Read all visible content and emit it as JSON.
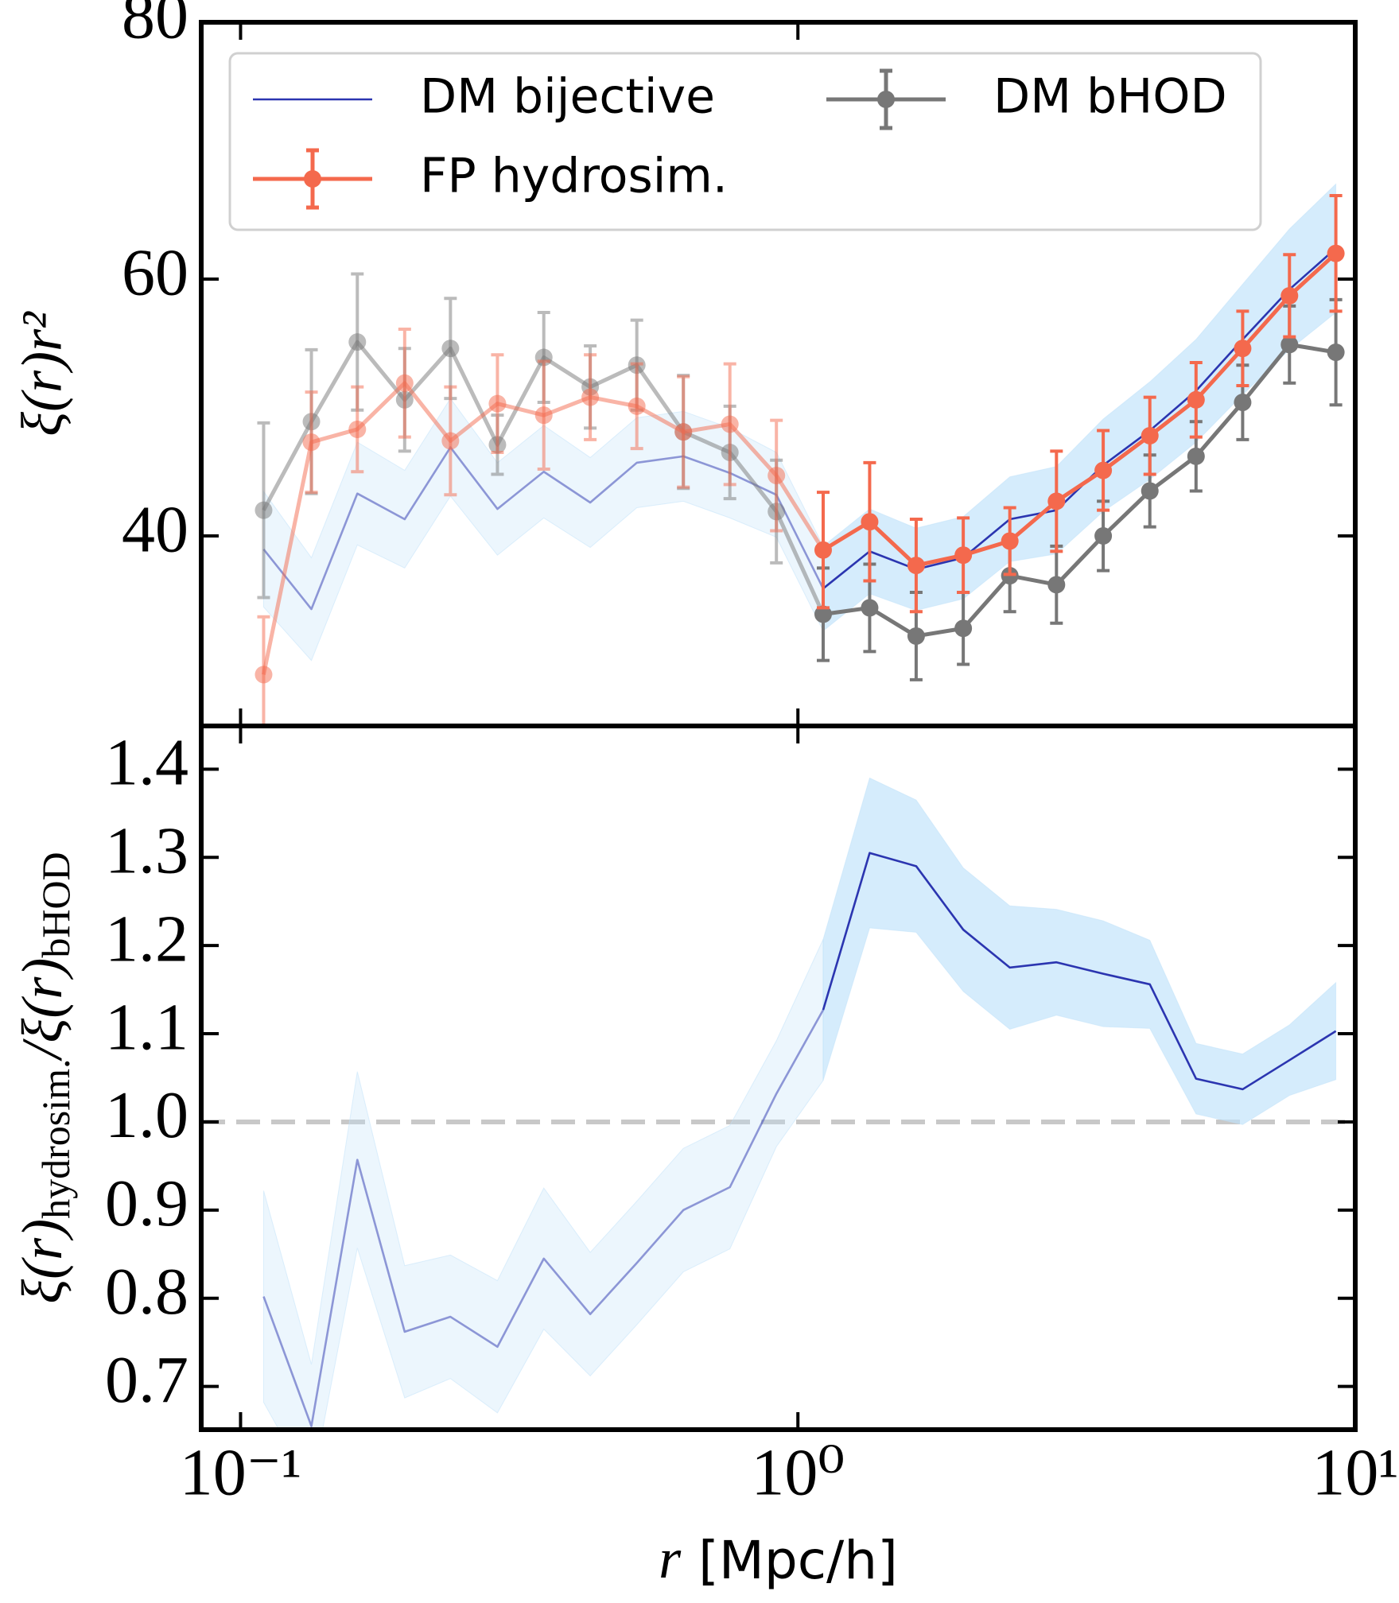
{
  "chart_data": [
    {
      "type": "line",
      "ylabel": "ξ(r)r²",
      "x": [
        0.11,
        0.134,
        0.162,
        0.197,
        0.238,
        0.289,
        0.35,
        0.424,
        0.514,
        0.623,
        0.755,
        0.915,
        1.11,
        1.345,
        1.63,
        1.98,
        2.4,
        2.91,
        3.53,
        4.28,
        5.18,
        6.28,
        7.62,
        9.23
      ],
      "xscale": "log",
      "xlim": [
        0.085,
        10
      ],
      "xticks": [
        {
          "value": 0.1,
          "label": "10⁻¹"
        },
        {
          "value": 1,
          "label": "10⁰"
        },
        {
          "value": 10,
          "label": "10¹"
        }
      ],
      "ylim": [
        25.2,
        80
      ],
      "yticks": [
        40,
        60,
        80
      ],
      "fade_below_x": 1,
      "legend": "upper left",
      "series": [
        {
          "name": "DM bijective",
          "color": "#2b35b0",
          "band_color": "#bfe2fa",
          "values": [
            38.96,
            34.3,
            43.3,
            41.3,
            46.9,
            42.1,
            45.0,
            42.6,
            45.7,
            46.2,
            44.9,
            43.2,
            35.9,
            38.8,
            37.4,
            38.3,
            41.3,
            42.0,
            45.5,
            48.2,
            51.3,
            55.3,
            59.2,
            62.4
          ],
          "band": [
            4.5,
            4.0,
            4.0,
            3.8,
            3.8,
            3.6,
            3.6,
            3.5,
            3.5,
            3.5,
            3.5,
            3.3,
            3.3,
            3.3,
            3.2,
            3.2,
            3.3,
            3.4,
            3.6,
            3.8,
            4.0,
            4.3,
            4.7,
            5.0
          ]
        },
        {
          "name": "FP hydrosim.",
          "color": "#f4694d",
          "values": [
            29.2,
            47.3,
            48.3,
            51.9,
            47.4,
            50.3,
            49.4,
            50.8,
            50.1,
            48.1,
            48.7,
            44.7,
            38.9,
            41.1,
            37.7,
            38.5,
            39.6,
            42.7,
            45.1,
            47.8,
            50.6,
            54.6,
            58.7,
            62.0
          ],
          "errors": [
            4.5,
            3.9,
            3.3,
            4.2,
            4.2,
            3.8,
            4.2,
            3.3,
            3.3,
            4.3,
            4.7,
            4.3,
            4.5,
            4.6,
            3.6,
            2.9,
            2.6,
            3.9,
            3.1,
            3.0,
            2.9,
            2.9,
            3.2,
            4.5
          ]
        },
        {
          "name": "DM bHOD",
          "color": "#777777",
          "values": [
            42.0,
            48.9,
            55.1,
            50.6,
            54.6,
            47.1,
            53.9,
            51.6,
            53.3,
            48.1,
            46.5,
            41.9,
            33.9,
            34.4,
            32.2,
            32.8,
            36.9,
            36.2,
            40.0,
            43.5,
            46.2,
            50.4,
            54.9,
            54.3
          ],
          "errors": [
            6.8,
            5.6,
            5.3,
            4.0,
            3.9,
            2.3,
            3.5,
            3.2,
            3.5,
            4.4,
            3.6,
            4.0,
            3.6,
            3.4,
            3.4,
            2.8,
            2.8,
            3.0,
            2.7,
            2.8,
            2.7,
            2.9,
            3.0,
            4.1
          ]
        }
      ]
    },
    {
      "type": "line",
      "ylabel": [
        "ξ(r)",
        "hydrosim.",
        "/ξ(r)",
        "bHOD"
      ],
      "xlabel": [
        "r",
        "[Mpc/h]"
      ],
      "x": [
        0.11,
        0.134,
        0.162,
        0.197,
        0.238,
        0.289,
        0.35,
        0.424,
        0.514,
        0.623,
        0.755,
        0.915,
        1.11,
        1.345,
        1.63,
        1.98,
        2.4,
        2.91,
        3.53,
        4.28,
        5.18,
        6.28,
        7.62,
        9.23
      ],
      "xscale": "log",
      "xlim": [
        0.085,
        10
      ],
      "xticks": [
        {
          "value": 0.1,
          "label": "10⁻¹"
        },
        {
          "value": 1,
          "label": "10⁰"
        },
        {
          "value": 10,
          "label": "10¹"
        }
      ],
      "ylim": [
        0.651,
        1.449
      ],
      "yticks": [
        0.7,
        0.8,
        0.9,
        {
          "value": 1,
          "label": "1.0"
        },
        1.1,
        1.2,
        1.3,
        1.4
      ],
      "reference_line": 1,
      "reference_color": "#c8c8c8",
      "fade_below_x": 1,
      "series": [
        {
          "color": "#2b35b0",
          "band_color": "#bfe2fa",
          "values": [
            0.802,
            0.655,
            0.957,
            0.762,
            0.779,
            0.745,
            0.845,
            0.782,
            0.84,
            0.9,
            0.926,
            1.032,
            1.127,
            1.305,
            1.29,
            1.218,
            1.175,
            1.181,
            1.168,
            1.156,
            1.049,
            1.037,
            1.07,
            1.103
          ],
          "band": [
            0.12,
            0.07,
            0.1,
            0.075,
            0.07,
            0.075,
            0.08,
            0.07,
            0.07,
            0.07,
            0.07,
            0.06,
            0.08,
            0.085,
            0.075,
            0.07,
            0.07,
            0.06,
            0.06,
            0.05,
            0.04,
            0.04,
            0.04,
            0.055
          ]
        }
      ]
    }
  ]
}
